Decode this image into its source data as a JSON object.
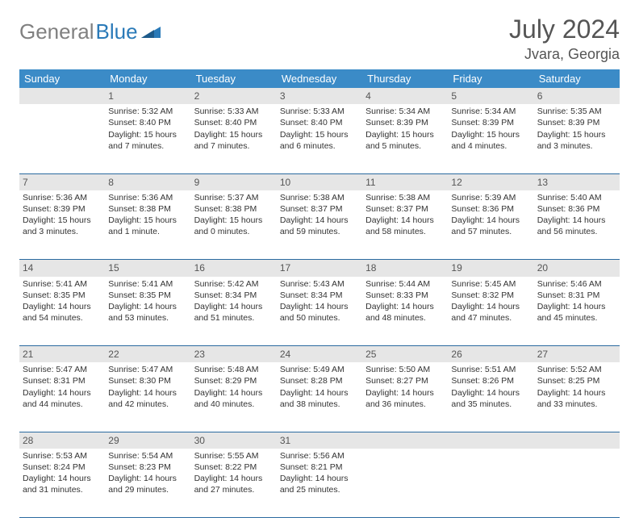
{
  "logo": {
    "gray": "General",
    "blue": "Blue"
  },
  "title": "July 2024",
  "location": "Jvara, Georgia",
  "colors": {
    "header_bg": "#3b8bc7",
    "row_divider": "#2a6aa0",
    "daynum_bg": "#e6e6e6",
    "logo_gray": "#808080",
    "logo_blue": "#2a7ab8"
  },
  "weekdays": [
    "Sunday",
    "Monday",
    "Tuesday",
    "Wednesday",
    "Thursday",
    "Friday",
    "Saturday"
  ],
  "weeks": [
    {
      "nums": [
        "",
        "1",
        "2",
        "3",
        "4",
        "5",
        "6"
      ],
      "cells": [
        {},
        {
          "sr": "5:32 AM",
          "ss": "8:40 PM",
          "d": "15 hours and 7 minutes."
        },
        {
          "sr": "5:33 AM",
          "ss": "8:40 PM",
          "d": "15 hours and 7 minutes."
        },
        {
          "sr": "5:33 AM",
          "ss": "8:40 PM",
          "d": "15 hours and 6 minutes."
        },
        {
          "sr": "5:34 AM",
          "ss": "8:39 PM",
          "d": "15 hours and 5 minutes."
        },
        {
          "sr": "5:34 AM",
          "ss": "8:39 PM",
          "d": "15 hours and 4 minutes."
        },
        {
          "sr": "5:35 AM",
          "ss": "8:39 PM",
          "d": "15 hours and 3 minutes."
        }
      ]
    },
    {
      "nums": [
        "7",
        "8",
        "9",
        "10",
        "11",
        "12",
        "13"
      ],
      "cells": [
        {
          "sr": "5:36 AM",
          "ss": "8:39 PM",
          "d": "15 hours and 3 minutes."
        },
        {
          "sr": "5:36 AM",
          "ss": "8:38 PM",
          "d": "15 hours and 1 minute."
        },
        {
          "sr": "5:37 AM",
          "ss": "8:38 PM",
          "d": "15 hours and 0 minutes."
        },
        {
          "sr": "5:38 AM",
          "ss": "8:37 PM",
          "d": "14 hours and 59 minutes."
        },
        {
          "sr": "5:38 AM",
          "ss": "8:37 PM",
          "d": "14 hours and 58 minutes."
        },
        {
          "sr": "5:39 AM",
          "ss": "8:36 PM",
          "d": "14 hours and 57 minutes."
        },
        {
          "sr": "5:40 AM",
          "ss": "8:36 PM",
          "d": "14 hours and 56 minutes."
        }
      ]
    },
    {
      "nums": [
        "14",
        "15",
        "16",
        "17",
        "18",
        "19",
        "20"
      ],
      "cells": [
        {
          "sr": "5:41 AM",
          "ss": "8:35 PM",
          "d": "14 hours and 54 minutes."
        },
        {
          "sr": "5:41 AM",
          "ss": "8:35 PM",
          "d": "14 hours and 53 minutes."
        },
        {
          "sr": "5:42 AM",
          "ss": "8:34 PM",
          "d": "14 hours and 51 minutes."
        },
        {
          "sr": "5:43 AM",
          "ss": "8:34 PM",
          "d": "14 hours and 50 minutes."
        },
        {
          "sr": "5:44 AM",
          "ss": "8:33 PM",
          "d": "14 hours and 48 minutes."
        },
        {
          "sr": "5:45 AM",
          "ss": "8:32 PM",
          "d": "14 hours and 47 minutes."
        },
        {
          "sr": "5:46 AM",
          "ss": "8:31 PM",
          "d": "14 hours and 45 minutes."
        }
      ]
    },
    {
      "nums": [
        "21",
        "22",
        "23",
        "24",
        "25",
        "26",
        "27"
      ],
      "cells": [
        {
          "sr": "5:47 AM",
          "ss": "8:31 PM",
          "d": "14 hours and 44 minutes."
        },
        {
          "sr": "5:47 AM",
          "ss": "8:30 PM",
          "d": "14 hours and 42 minutes."
        },
        {
          "sr": "5:48 AM",
          "ss": "8:29 PM",
          "d": "14 hours and 40 minutes."
        },
        {
          "sr": "5:49 AM",
          "ss": "8:28 PM",
          "d": "14 hours and 38 minutes."
        },
        {
          "sr": "5:50 AM",
          "ss": "8:27 PM",
          "d": "14 hours and 36 minutes."
        },
        {
          "sr": "5:51 AM",
          "ss": "8:26 PM",
          "d": "14 hours and 35 minutes."
        },
        {
          "sr": "5:52 AM",
          "ss": "8:25 PM",
          "d": "14 hours and 33 minutes."
        }
      ]
    },
    {
      "nums": [
        "28",
        "29",
        "30",
        "31",
        "",
        "",
        ""
      ],
      "cells": [
        {
          "sr": "5:53 AM",
          "ss": "8:24 PM",
          "d": "14 hours and 31 minutes."
        },
        {
          "sr": "5:54 AM",
          "ss": "8:23 PM",
          "d": "14 hours and 29 minutes."
        },
        {
          "sr": "5:55 AM",
          "ss": "8:22 PM",
          "d": "14 hours and 27 minutes."
        },
        {
          "sr": "5:56 AM",
          "ss": "8:21 PM",
          "d": "14 hours and 25 minutes."
        },
        {},
        {},
        {}
      ]
    }
  ],
  "labels": {
    "sunrise": "Sunrise: ",
    "sunset": "Sunset: ",
    "daylight": "Daylight: "
  }
}
